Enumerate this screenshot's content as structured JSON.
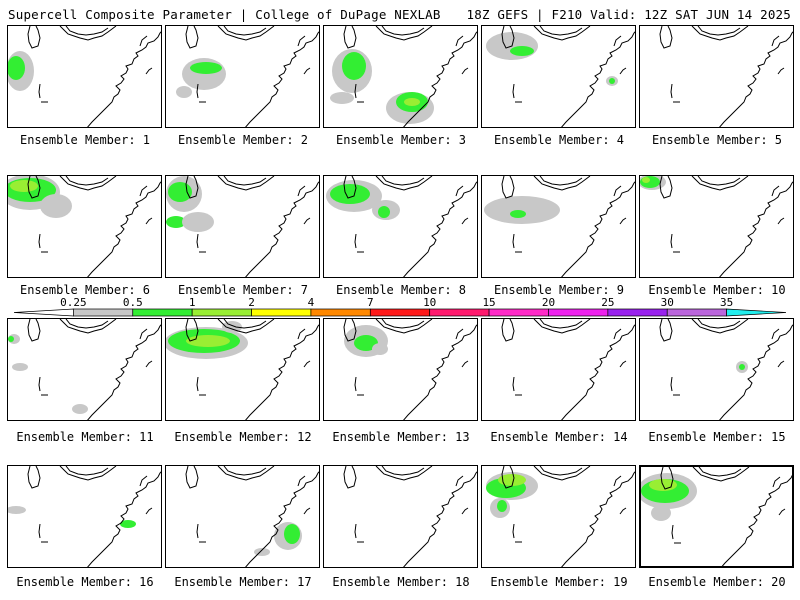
{
  "header": {
    "left": "Supercell Composite Parameter | College of DuPage NEXLAB",
    "right": "18Z GEFS | F210 Valid: 12Z SAT JUN 14 2025"
  },
  "panels": [
    {
      "label": "Ensemble Member: 1"
    },
    {
      "label": "Ensemble Member: 2"
    },
    {
      "label": "Ensemble Member: 3"
    },
    {
      "label": "Ensemble Member: 4"
    },
    {
      "label": "Ensemble Member: 5"
    },
    {
      "label": "Ensemble Member: 6"
    },
    {
      "label": "Ensemble Member: 7"
    },
    {
      "label": "Ensemble Member: 8"
    },
    {
      "label": "Ensemble Member: 9"
    },
    {
      "label": "Ensemble Member: 10"
    },
    {
      "label": "Ensemble Member: 11"
    },
    {
      "label": "Ensemble Member: 12"
    },
    {
      "label": "Ensemble Member: 13"
    },
    {
      "label": "Ensemble Member: 14"
    },
    {
      "label": "Ensemble Member: 15"
    },
    {
      "label": "Ensemble Member: 16"
    },
    {
      "label": "Ensemble Member: 17"
    },
    {
      "label": "Ensemble Member: 18"
    },
    {
      "label": "Ensemble Member: 19"
    },
    {
      "label": "Ensemble Member: 20",
      "selected": true
    }
  ],
  "colorbar": {
    "ticks": [
      "0.25",
      "0.5",
      "1",
      "2",
      "4",
      "7",
      "10",
      "15",
      "20",
      "25",
      "30",
      "35"
    ],
    "colors": [
      "#ffffff",
      "#c8c8c8",
      "#33ee33",
      "#99ee33",
      "#ffff00",
      "#ff8800",
      "#ff1a1a",
      "#ff1a6e",
      "#ff2ac8",
      "#ee22ee",
      "#9922ee",
      "#bb66dd",
      "#22eeee"
    ]
  }
}
